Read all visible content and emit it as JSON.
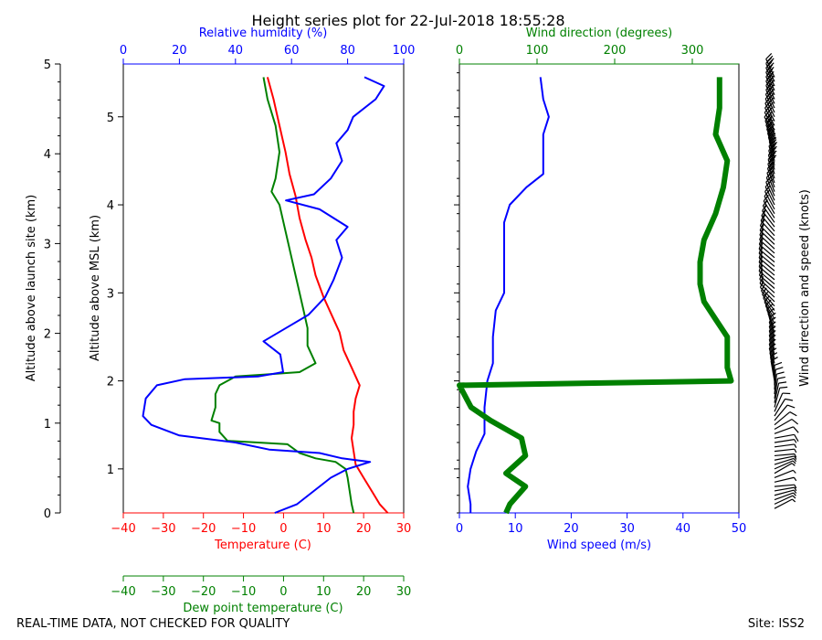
{
  "title": "Height series plot for 22-Jul-2018 18:55:28",
  "footer": {
    "left": "REAL-TIME DATA, NOT CHECKED FOR QUALITY",
    "right": "Site: ISS2"
  },
  "colors": {
    "temperature": "#ff0000",
    "dewpoint": "#008000",
    "humidity": "#0000ff",
    "wind_speed": "#0000ff",
    "wind_direction": "#008000",
    "barbs": "#000000"
  },
  "chart_data": [
    {
      "type": "line",
      "panel": "thermo",
      "xlabel": "Temperature (C)",
      "xlabel_secondary": "Dew point temperature (C)",
      "xlabel_top": "Relative humidity (%)",
      "ylabel_left": "Altitude above launch site (km)",
      "ylabel": "Altitude above MSL (km)",
      "xlim": [
        -40,
        30
      ],
      "xlim_top": [
        0,
        100
      ],
      "ylim_left": [
        0,
        5
      ],
      "ylim": [
        0.5,
        5.6
      ],
      "x_ticks": [
        "−40",
        "−30",
        "−20",
        "−10",
        "0",
        "10",
        "20",
        "30"
      ],
      "x_ticks_top": [
        "0",
        "20",
        "40",
        "60",
        "80",
        "100"
      ],
      "y_ticks_left": [
        "0",
        "1",
        "2",
        "3",
        "4",
        "5"
      ],
      "y_ticks": [
        "1",
        "2",
        "3",
        "4",
        "5"
      ],
      "grid": false,
      "series": [
        {
          "name": "Temperature",
          "axis": "bottom",
          "points": [
            [
              26,
              0.5
            ],
            [
              24,
              0.6
            ],
            [
              22,
              0.75
            ],
            [
              20,
              0.9
            ],
            [
              18,
              1.05
            ],
            [
              17.5,
              1.2
            ],
            [
              17,
              1.35
            ],
            [
              17.5,
              1.5
            ],
            [
              17.5,
              1.65
            ],
            [
              18,
              1.8
            ],
            [
              19,
              1.95
            ],
            [
              17,
              2.15
            ],
            [
              15,
              2.35
            ],
            [
              14,
              2.55
            ],
            [
              12,
              2.75
            ],
            [
              10,
              2.95
            ],
            [
              8,
              3.2
            ],
            [
              7,
              3.4
            ],
            [
              5.5,
              3.6
            ],
            [
              4,
              3.85
            ],
            [
              3,
              4.1
            ],
            [
              1.5,
              4.35
            ],
            [
              0.5,
              4.6
            ],
            [
              -1,
              4.9
            ],
            [
              -2.5,
              5.2
            ],
            [
              -4,
              5.45
            ]
          ]
        },
        {
          "name": "Dew point",
          "axis": "bottom_secondary",
          "points": [
            [
              17.5,
              0.5
            ],
            [
              17,
              0.6
            ],
            [
              16.5,
              0.75
            ],
            [
              16,
              0.9
            ],
            [
              15.5,
              1.0
            ],
            [
              13,
              1.08
            ],
            [
              8,
              1.12
            ],
            [
              4,
              1.18
            ],
            [
              1,
              1.28
            ],
            [
              -14,
              1.32
            ],
            [
              -16,
              1.42
            ],
            [
              -16,
              1.52
            ],
            [
              -18,
              1.55
            ],
            [
              -17,
              1.7
            ],
            [
              -17,
              1.85
            ],
            [
              -16,
              1.95
            ],
            [
              -12,
              2.05
            ],
            [
              -5,
              2.07
            ],
            [
              4,
              2.1
            ],
            [
              8,
              2.2
            ],
            [
              6,
              2.4
            ],
            [
              6,
              2.6
            ],
            [
              5,
              2.8
            ],
            [
              4,
              3.0
            ],
            [
              3,
              3.2
            ],
            [
              2,
              3.4
            ],
            [
              1,
              3.6
            ],
            [
              0,
              3.8
            ],
            [
              -1,
              4.0
            ],
            [
              -3,
              4.15
            ],
            [
              -2,
              4.3
            ],
            [
              -1,
              4.6
            ],
            [
              -2,
              4.9
            ],
            [
              -4,
              5.2
            ],
            [
              -5,
              5.45
            ]
          ]
        },
        {
          "name": "Relative humidity",
          "axis": "top",
          "points": [
            [
              54,
              0.5
            ],
            [
              62,
              0.6
            ],
            [
              68,
              0.75
            ],
            [
              74,
              0.9
            ],
            [
              80,
              1.0
            ],
            [
              88,
              1.08
            ],
            [
              78,
              1.12
            ],
            [
              70,
              1.18
            ],
            [
              52,
              1.22
            ],
            [
              40,
              1.3
            ],
            [
              20,
              1.38
            ],
            [
              10,
              1.5
            ],
            [
              7,
              1.6
            ],
            [
              8,
              1.8
            ],
            [
              12,
              1.95
            ],
            [
              22,
              2.02
            ],
            [
              48,
              2.05
            ],
            [
              57,
              2.1
            ],
            [
              56,
              2.3
            ],
            [
              50,
              2.45
            ],
            [
              58,
              2.6
            ],
            [
              66,
              2.75
            ],
            [
              72,
              2.95
            ],
            [
              75,
              3.15
            ],
            [
              78,
              3.4
            ],
            [
              76,
              3.6
            ],
            [
              80,
              3.75
            ],
            [
              70,
              3.95
            ],
            [
              58,
              4.05
            ],
            [
              68,
              4.12
            ],
            [
              74,
              4.3
            ],
            [
              78,
              4.5
            ],
            [
              76,
              4.7
            ],
            [
              80,
              4.85
            ],
            [
              82,
              5.0
            ],
            [
              90,
              5.2
            ],
            [
              93,
              5.35
            ],
            [
              86,
              5.45
            ]
          ]
        }
      ]
    },
    {
      "type": "line",
      "panel": "wind",
      "xlabel": "Wind speed (m/s)",
      "xlabel_top": "Wind direction (degrees)",
      "ylabel_right": "Wind direction and speed (knots)",
      "xlim": [
        0,
        50
      ],
      "xlim_top": [
        0,
        360
      ],
      "x_ticks": [
        "0",
        "10",
        "20",
        "30",
        "40",
        "50"
      ],
      "x_ticks_top": [
        "0",
        "100",
        "200",
        "300"
      ],
      "grid": false,
      "series": [
        {
          "name": "Wind speed",
          "axis": "bottom",
          "points": [
            [
              2,
              0.5
            ],
            [
              2,
              0.6
            ],
            [
              1.5,
              0.8
            ],
            [
              2,
              1.0
            ],
            [
              3,
              1.2
            ],
            [
              4.5,
              1.4
            ],
            [
              4.5,
              1.7
            ],
            [
              5,
              2.0
            ],
            [
              6,
              2.2
            ],
            [
              6,
              2.5
            ],
            [
              6.5,
              2.8
            ],
            [
              8,
              3.0
            ],
            [
              8,
              3.2
            ],
            [
              8,
              3.5
            ],
            [
              8,
              3.8
            ],
            [
              9,
              4.0
            ],
            [
              12,
              4.2
            ],
            [
              15,
              4.35
            ],
            [
              15,
              4.6
            ],
            [
              15,
              4.8
            ],
            [
              16,
              5.0
            ],
            [
              15,
              5.2
            ],
            [
              14.5,
              5.45
            ]
          ]
        },
        {
          "name": "Wind direction",
          "axis": "top",
          "points": [
            [
              60,
              0.5
            ],
            [
              65,
              0.6
            ],
            [
              85,
              0.8
            ],
            [
              60,
              0.95
            ],
            [
              85,
              1.15
            ],
            [
              80,
              1.35
            ],
            [
              40,
              1.55
            ],
            [
              15,
              1.7
            ],
            [
              0,
              1.95
            ],
            [
              350,
              2.0
            ],
            [
              345,
              2.15
            ],
            [
              345,
              2.5
            ],
            [
              330,
              2.7
            ],
            [
              315,
              2.9
            ],
            [
              310,
              3.1
            ],
            [
              310,
              3.35
            ],
            [
              315,
              3.6
            ],
            [
              330,
              3.9
            ],
            [
              340,
              4.2
            ],
            [
              345,
              4.5
            ],
            [
              330,
              4.8
            ],
            [
              335,
              5.1
            ],
            [
              335,
              5.45
            ]
          ]
        }
      ]
    }
  ]
}
